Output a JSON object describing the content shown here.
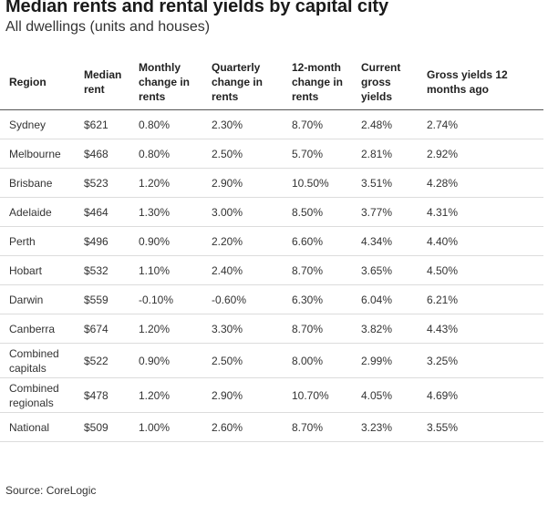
{
  "title": "Median rents and rental yields by capital city",
  "subtitle": "All dwellings (units and houses)",
  "table": {
    "headers": [
      "Region",
      "Median rent",
      "Monthly change in rents",
      "Quarterly change in rents",
      "12-month change in rents",
      "Current gross yields",
      "Gross yields 12 months ago"
    ],
    "rows": [
      [
        "Sydney",
        "$621",
        "0.80%",
        "2.30%",
        "8.70%",
        "2.48%",
        "2.74%"
      ],
      [
        "Melbourne",
        "$468",
        "0.80%",
        "2.50%",
        "5.70%",
        "2.81%",
        "2.92%"
      ],
      [
        "Brisbane",
        "$523",
        "1.20%",
        "2.90%",
        "10.50%",
        "3.51%",
        "4.28%"
      ],
      [
        "Adelaide",
        "$464",
        "1.30%",
        "3.00%",
        "8.50%",
        "3.77%",
        "4.31%"
      ],
      [
        "Perth",
        "$496",
        "0.90%",
        "2.20%",
        "6.60%",
        "4.34%",
        "4.40%"
      ],
      [
        "Hobart",
        "$532",
        "1.10%",
        "2.40%",
        "8.70%",
        "3.65%",
        "4.50%"
      ],
      [
        "Darwin",
        "$559",
        "-0.10%",
        "-0.60%",
        "6.30%",
        "6.04%",
        "6.21%"
      ],
      [
        "Canberra",
        "$674",
        "1.20%",
        "3.30%",
        "8.70%",
        "3.82%",
        "4.43%"
      ],
      [
        "Combined capitals",
        "$522",
        "0.90%",
        "2.50%",
        "8.00%",
        "2.99%",
        "3.25%"
      ],
      [
        "Combined regionals",
        "$478",
        "1.20%",
        "2.90%",
        "10.70%",
        "4.05%",
        "4.69%"
      ],
      [
        "National",
        "$509",
        "1.00%",
        "2.60%",
        "8.70%",
        "3.23%",
        "3.55%"
      ]
    ]
  },
  "source": "Source: CoreLogic"
}
